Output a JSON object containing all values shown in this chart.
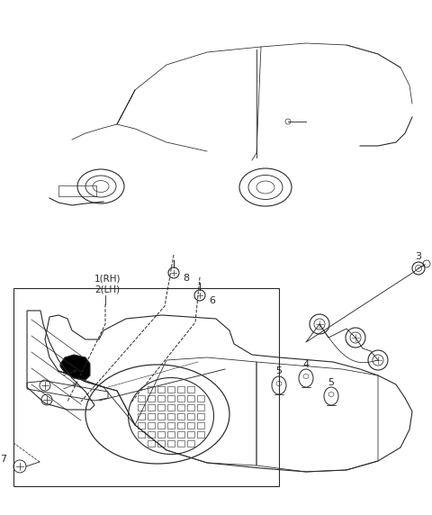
{
  "bg_color": "#ffffff",
  "line_color": "#2a2a2a",
  "fig_width": 4.8,
  "fig_height": 5.72,
  "dpi": 100
}
